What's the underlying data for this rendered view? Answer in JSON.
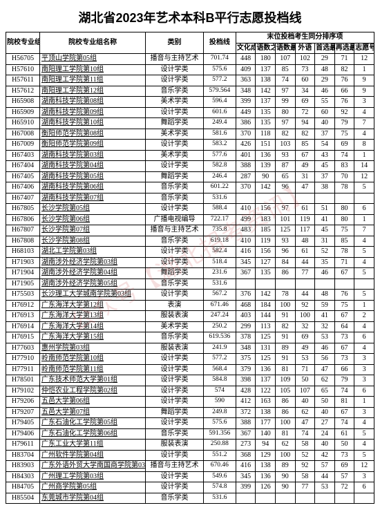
{
  "title": "湖北省2023年艺术本科B平行志愿投档线",
  "watermark": "公众号【湖北招考资讯】",
  "headers": {
    "code": "院校专业组代号",
    "name": "院校专业组名称",
    "category": "类别",
    "score": "投档线",
    "group": "末位投档考生同分排序项",
    "s1": "文化成绩",
    "s2": "语数之和",
    "s3": "语数最高",
    "s4": "外语",
    "s5": "首选最高",
    "s6": "再选最高",
    "s7": "志愿号"
  },
  "rows": [
    {
      "code": "H56705",
      "name": "平顶山学院第05组",
      "cat": "播音与主持艺术",
      "score": "701.74",
      "v": [
        "448",
        "180",
        "107",
        "102",
        "29",
        "71",
        "12"
      ]
    },
    {
      "code": "H57610",
      "name": "南阳理工学院第10组",
      "cat": "设计学类",
      "score": "575.6",
      "v": [
        "409",
        "137",
        "85",
        "73",
        "48",
        "82",
        "1"
      ]
    },
    {
      "code": "H57611",
      "name": "南阳理工学院第11组",
      "cat": "设计学类",
      "score": "577.2",
      "v": [
        "363",
        "138",
        "74",
        "60",
        "29",
        "76",
        "9"
      ]
    },
    {
      "code": "H57612",
      "name": "南阳理工学院第12组",
      "cat": "音乐学类",
      "score": "579.564",
      "v": [
        "348",
        "142",
        "97",
        "34",
        "46",
        "66",
        "9"
      ]
    },
    {
      "code": "H65908",
      "name": "湖南科技学院第08组",
      "cat": "美术学类",
      "score": "596.4",
      "v": [
        "399",
        "137",
        "99",
        "69",
        "55",
        "76",
        "3"
      ]
    },
    {
      "code": "H65909",
      "name": "湖南科技学院第09组",
      "cat": "设计学类",
      "score": "601.6",
      "v": [
        "449",
        "135",
        "80",
        "72",
        "60",
        "92",
        "4"
      ]
    },
    {
      "code": "H65910",
      "name": "湖南科技学院第10组",
      "cat": "舞蹈学类",
      "score": "249.4",
      "v": [
        "386",
        "135",
        "97",
        "94",
        "40",
        "79",
        "7"
      ]
    },
    {
      "code": "H67008",
      "name": "衡阳师范学院第08组",
      "cat": "美术学类",
      "score": "581.6",
      "v": [
        "370",
        "118",
        "82",
        "82",
        "37",
        "75",
        "4"
      ]
    },
    {
      "code": "H67009",
      "name": "衡阳师范学院第09组",
      "cat": "设计学类",
      "score": "583.2",
      "v": [
        "426",
        "151",
        "103",
        "85",
        "54",
        "69",
        "8"
      ]
    },
    {
      "code": "H67403",
      "name": "湖南科技学院第03组",
      "cat": "美术学类",
      "score": "577.6",
      "v": [
        "401",
        "136",
        "93",
        "67",
        "43",
        "74",
        "1"
      ]
    },
    {
      "code": "H67404",
      "name": "湖南科技学院第04组",
      "cat": "设计学类",
      "score": "582.8",
      "v": [
        "388",
        "139",
        "87",
        "49",
        "45",
        "83",
        "14"
      ]
    },
    {
      "code": "H67405",
      "name": "湖南科技学院第05组",
      "cat": "舞蹈学类",
      "score": "246.4",
      "v": [
        "287",
        "90",
        "65",
        "31",
        "37",
        "70",
        "12"
      ]
    },
    {
      "code": "H67406",
      "name": "湖南科技学院第06组",
      "cat": "音乐学类",
      "score": "601.22",
      "v": [
        "370",
        "142",
        "96",
        "47",
        "38",
        "78",
        "5"
      ]
    },
    {
      "code": "H67407",
      "name": "湖南科技学院第07组",
      "cat": "音乐学类",
      "score": "531.6",
      "v": [
        "",
        "",
        "",
        "",
        "",
        "",
        ""
      ]
    },
    {
      "code": "H67805",
      "name": "长沙学院第05组",
      "cat": "设计学类",
      "score": "588.4",
      "v": [
        "410",
        "156",
        "97",
        "61",
        "51",
        "80",
        "6"
      ]
    },
    {
      "code": "H67806",
      "name": "长沙学院第06组",
      "cat": "广播电视编导",
      "score": "722.17",
      "v": [
        "499",
        "183",
        "101",
        "119",
        "41",
        "80",
        "1"
      ]
    },
    {
      "code": "H67807",
      "name": "长沙学院第07组",
      "cat": "播音与主持艺术",
      "score": "735.8",
      "v": [
        "483",
        "185",
        "125",
        "117",
        "45",
        "75",
        "7"
      ]
    },
    {
      "code": "H67808",
      "name": "长沙学院第08组",
      "cat": "音乐学类",
      "score": "619.18",
      "v": [
        "410",
        "119",
        "93",
        "48",
        "31",
        "85",
        "4"
      ]
    },
    {
      "code": "H68103",
      "name": "湖北工学院第03组",
      "cat": "设计学类",
      "score": "582.4",
      "v": [
        "416",
        "156",
        "96",
        "61",
        "52",
        "78",
        "5"
      ]
    },
    {
      "code": "H71903",
      "name": "湖南涉外经济学院第03组",
      "cat": "设计学类",
      "score": "518.4",
      "v": [
        "345",
        "127",
        "84",
        "44",
        "35",
        "71",
        "4"
      ]
    },
    {
      "code": "H71904",
      "name": "湖南涉外经济学院第04组",
      "cat": "舞蹈学类",
      "score": "231.6",
      "v": [
        "367",
        "135",
        "86",
        "77",
        "46",
        "67",
        "5"
      ]
    },
    {
      "code": "H71905",
      "name": "湖南涉外经济学院第05组",
      "cat": "音乐学类",
      "score": "531.6",
      "v": [
        "",
        "",
        "",
        "",
        "",
        "",
        ""
      ]
    },
    {
      "code": "H75503",
      "name": "长沙理工大学城南学院第03组",
      "cat": "设计学类",
      "score": "567.2",
      "v": [
        "376",
        "142",
        "78",
        "44",
        "48",
        "76",
        "5"
      ]
    },
    {
      "code": "H76912",
      "name": "广东海洋大学第12组",
      "cat": "表演",
      "score": "671.46",
      "v": [
        "468",
        "184",
        "100",
        "92",
        "59",
        "75",
        "1"
      ]
    },
    {
      "code": "H76913",
      "name": "广东海洋大学第13组",
      "cat": "服装表演",
      "score": "247.24",
      "v": [
        "403",
        "144",
        "91",
        "100",
        "41",
        "67",
        "2"
      ]
    },
    {
      "code": "H76914",
      "name": "广东海洋大学第14组",
      "cat": "美术学类",
      "score": "250.2",
      "v": [
        "299",
        "113",
        "82",
        "32",
        "32",
        "64",
        "4"
      ]
    },
    {
      "code": "H76915",
      "name": "广东海洋大学第15组",
      "cat": "音乐学类",
      "score": "619.536",
      "v": [
        "378",
        "125",
        "91",
        "69",
        "53",
        "73",
        "6"
      ]
    },
    {
      "code": "H77603",
      "name": "惠州学院第03组",
      "cat": "服装表演",
      "score": "241.9",
      "v": [
        "348",
        "131",
        "89",
        "49",
        "46",
        "67",
        "4"
      ]
    },
    {
      "code": "H77910",
      "name": "岭南师范学院第10组",
      "cat": "设计学类",
      "score": "577.2",
      "v": [
        "375",
        "125",
        "91",
        "53",
        "56",
        "73",
        "3"
      ]
    },
    {
      "code": "H77911",
      "name": "岭南师范学院第11组",
      "cat": "设计学类",
      "score": "568.4",
      "v": [
        "379",
        "136",
        "81",
        "71",
        "47",
        "66",
        "3"
      ]
    },
    {
      "code": "H78501",
      "name": "广东技术师范大学第01组",
      "cat": "设计学类",
      "score": "584.8",
      "v": [
        "398",
        "137",
        "109",
        "50",
        "62",
        "79",
        "3"
      ]
    },
    {
      "code": "H79102",
      "name": "仲恺农业工程学院第02组",
      "cat": "设计学类",
      "score": "574",
      "v": [
        "428",
        "122",
        "105",
        "107",
        "65",
        "74",
        "6"
      ]
    },
    {
      "code": "H79206",
      "name": "五邑大学第06组",
      "cat": "设计学类",
      "score": "590",
      "v": [
        "412",
        "163",
        "86",
        "40",
        "50",
        "81",
        "1"
      ]
    },
    {
      "code": "H79207",
      "name": "五邑大学第07组",
      "cat": "舞蹈学类",
      "score": "249.8",
      "v": [
        "372",
        "138",
        "86",
        "62",
        "40",
        "67",
        "3"
      ]
    },
    {
      "code": "H79405",
      "name": "广东石油化工学院第05组",
      "cat": "设计学类",
      "score": "575.6",
      "v": [
        "388",
        "177",
        "100",
        "47",
        "27",
        "74",
        "4"
      ]
    },
    {
      "code": "H79406",
      "name": "广东石油化工学院第06组",
      "cat": "音乐学类",
      "score": "591.356",
      "v": [
        "367",
        "140",
        "81",
        "74",
        "24",
        "61",
        "5"
      ]
    },
    {
      "code": "H79611",
      "name": "广东工业大学第11组",
      "cat": "服装表演",
      "score": "250.88",
      "v": [
        "273",
        "94",
        "62",
        "58",
        "40",
        "50",
        "4"
      ]
    },
    {
      "code": "H83704",
      "name": "广州软件学院第04组",
      "cat": "设计学类",
      "score": "551.2",
      "v": [
        "368",
        "129",
        "100",
        "52",
        "42",
        "73",
        "5"
      ]
    },
    {
      "code": "H83903",
      "name": "广东外语外贸大学南国商学院第03组",
      "cat": "播音与主持艺术",
      "score": "670.46",
      "v": [
        "416",
        "138",
        "89",
        "92",
        "57",
        "69",
        "12"
      ]
    },
    {
      "code": "H84303",
      "name": "广州理工学院第03组",
      "cat": "设计学类",
      "score": "549.6",
      "v": [
        "345",
        "136",
        "90",
        "58",
        "44",
        "57",
        "3"
      ]
    },
    {
      "code": "H84705",
      "name": "广州商学院第05组",
      "cat": "设计学类",
      "score": "574.8",
      "v": [
        "399",
        "126",
        "90",
        "77",
        "53",
        "72",
        "6"
      ]
    },
    {
      "code": "H85504",
      "name": "东莞城市学院第04组",
      "cat": "音乐学类",
      "score": "531.6",
      "v": [
        "",
        "",
        "",
        "",
        "",
        "",
        ""
      ]
    }
  ],
  "style": {
    "background": "#ffffff",
    "border_color": "#000000",
    "title_fontsize": 18,
    "body_fontsize": 10,
    "link_color": "#000000"
  }
}
